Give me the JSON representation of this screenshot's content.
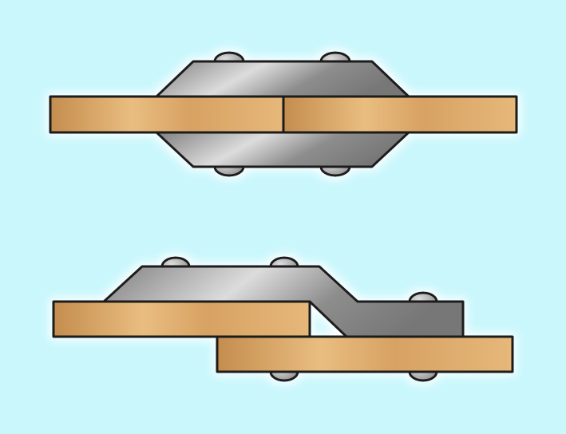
{
  "diagram": {
    "colors": {
      "background": "#c9f7fc",
      "outline": "#1c1c1c",
      "wood_dark": "#c48d4e",
      "wood_light": "#e9bd80",
      "metal_dark": "#7f7f7f",
      "metal_light": "#dcdcdc",
      "rivet": "#a9a9a9"
    },
    "figures": [
      {
        "name": "butt-joint-double-strap",
        "plates": 2,
        "straps": 2,
        "rivets_top": 2,
        "rivets_bottom": 2
      },
      {
        "name": "lap-joint-joggled-strap",
        "plates": 2,
        "straps": 1,
        "rivets_top": 3,
        "rivets_bottom": 2
      }
    ]
  }
}
